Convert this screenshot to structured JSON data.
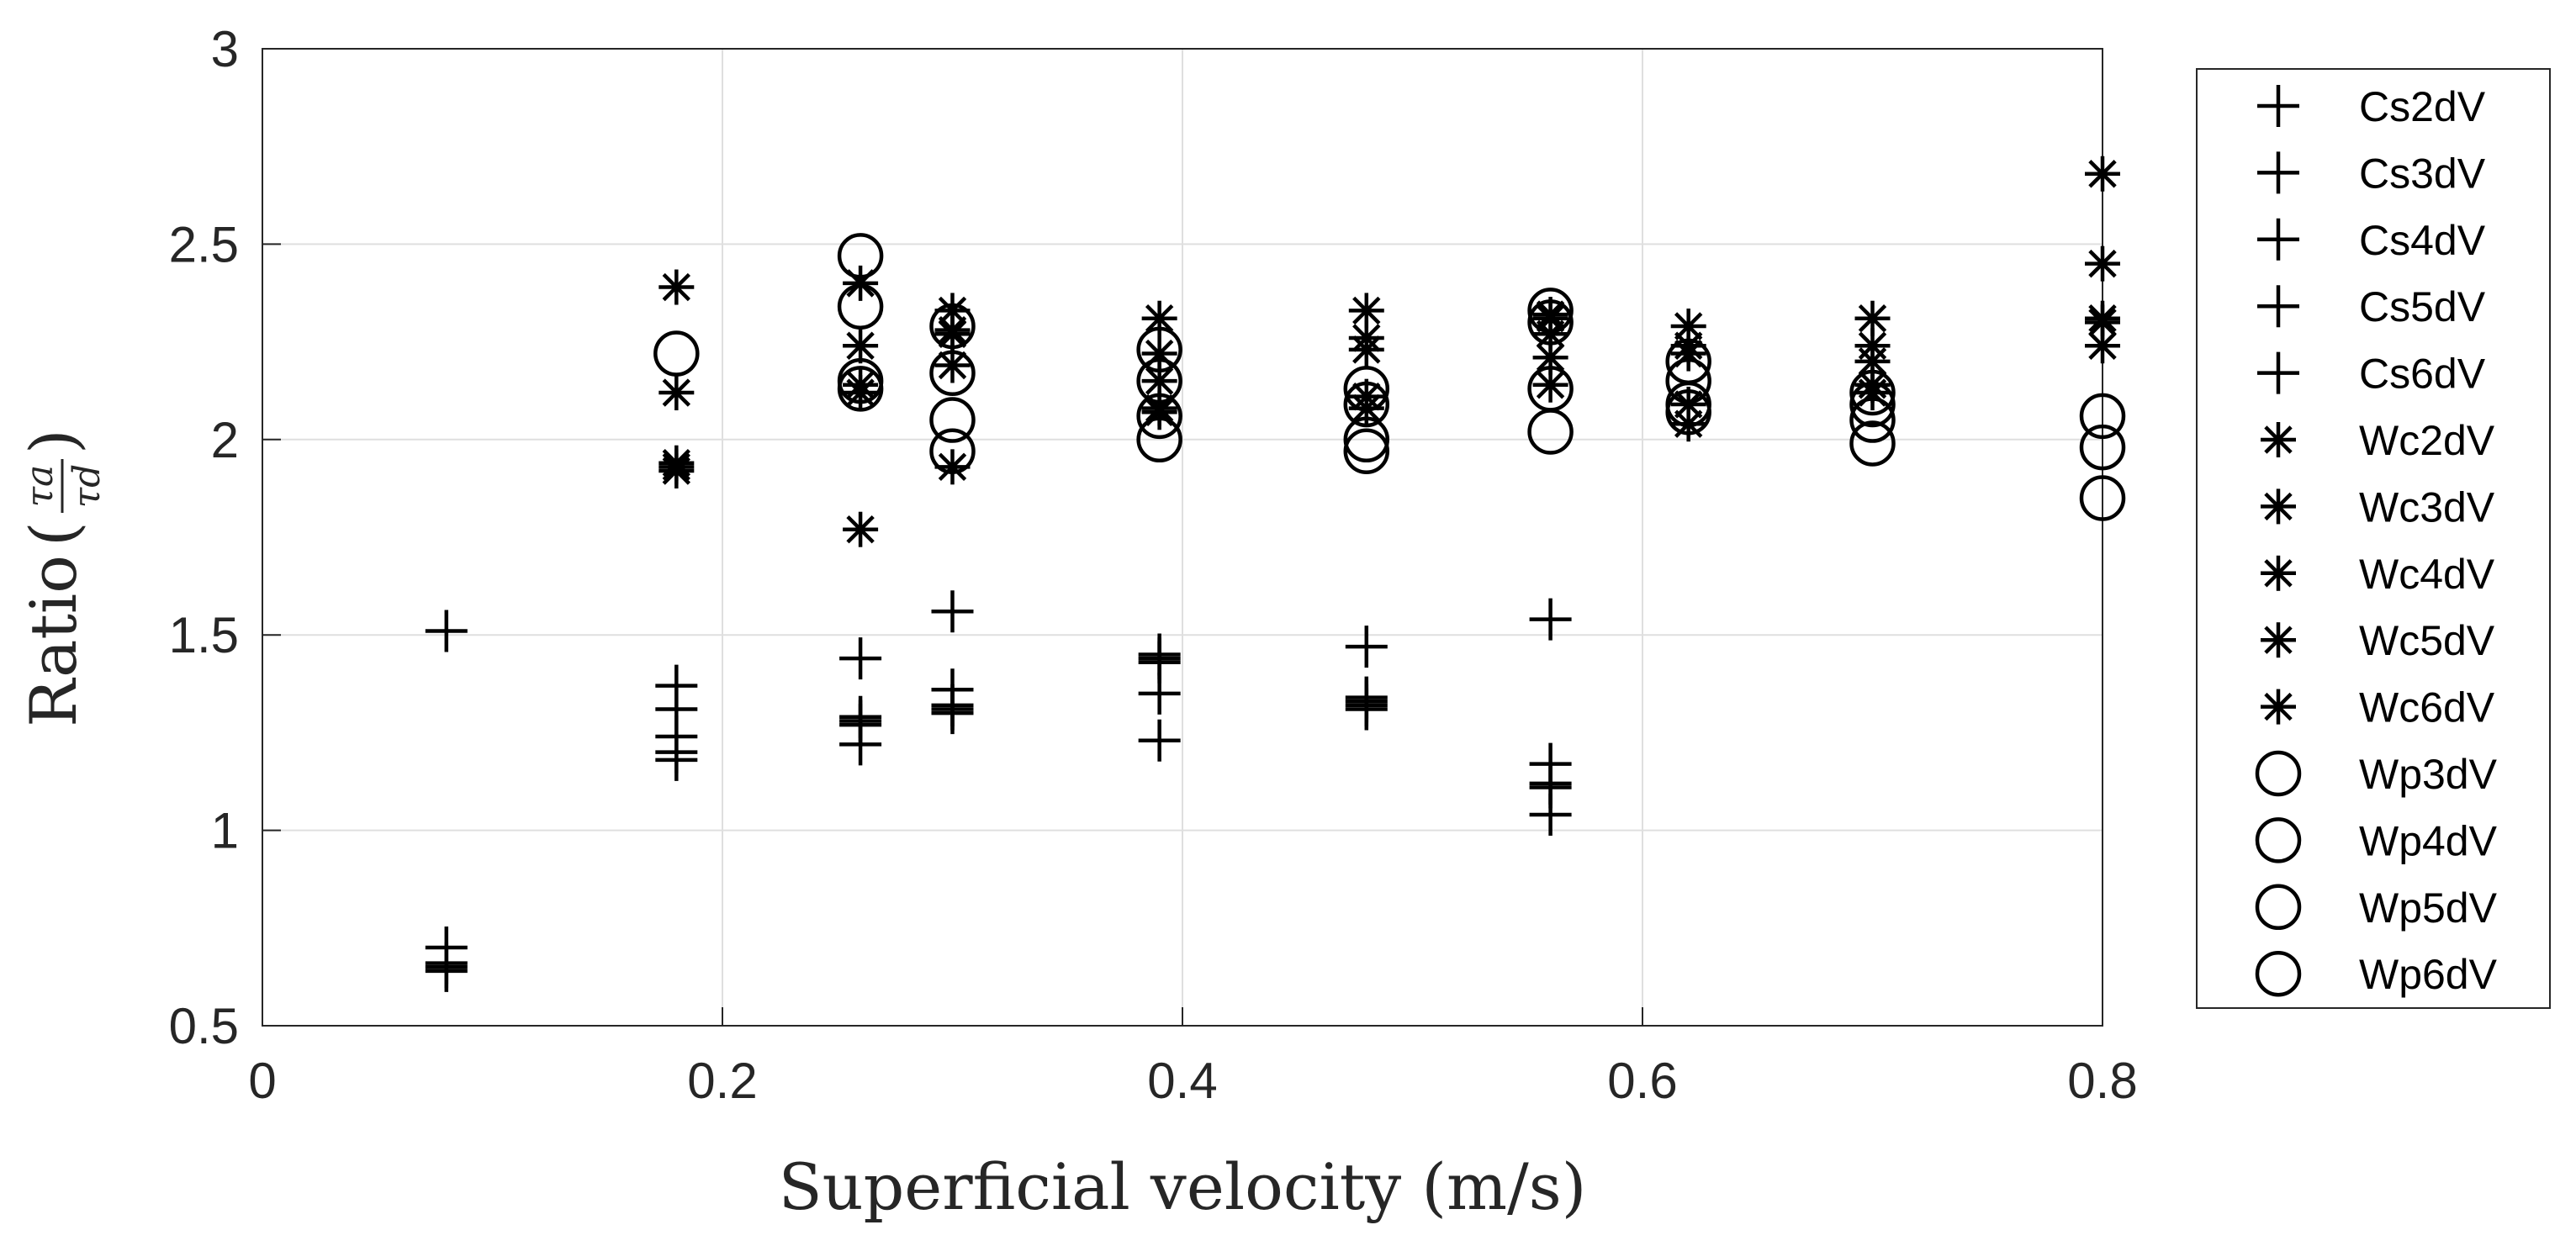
{
  "colors": {
    "marker": "#000000",
    "axis": "#262626",
    "grid": "#dfdfdf",
    "background": "#ffffff"
  },
  "chart_data": {
    "type": "scatter",
    "title": "",
    "xlabel": "Superficial velocity (m/s)",
    "ylabel": "Ratio",
    "ylabel_fraction": {
      "numerator": "τa",
      "denominator": "τd"
    },
    "xlim": [
      0,
      0.8
    ],
    "ylim": [
      0.5,
      3
    ],
    "xticks": [
      0,
      0.2,
      0.4,
      0.6,
      0.8
    ],
    "xtick_labels": [
      "0",
      "0.2",
      "0.4",
      "0.6",
      "0.8"
    ],
    "yticks": [
      0.5,
      1,
      1.5,
      2,
      2.5,
      3
    ],
    "ytick_labels": [
      "0.5",
      "1",
      "1.5",
      "2",
      "2.5",
      "3"
    ],
    "grid": true,
    "legend_position": "outside-right",
    "series": [
      {
        "name": "Cs2dV",
        "marker": "plus",
        "x": [
          0.08,
          0.18,
          0.26,
          0.3,
          0.39,
          0.48,
          0.56
        ],
        "y": [
          1.51,
          1.37,
          1.44,
          1.56,
          1.45,
          1.47,
          1.54
        ]
      },
      {
        "name": "Cs3dV",
        "marker": "plus",
        "x": [
          0.08,
          0.18,
          0.26,
          0.3,
          0.39,
          0.48,
          0.56
        ],
        "y": [
          0.7,
          1.31,
          1.29,
          1.36,
          1.43,
          1.34,
          1.17
        ]
      },
      {
        "name": "Cs4dV",
        "marker": "plus",
        "x": [
          0.08,
          0.18,
          0.26,
          0.3,
          0.39,
          0.48,
          0.56
        ],
        "y": [
          0.66,
          1.24,
          1.28,
          1.32,
          1.35,
          1.33,
          1.12
        ]
      },
      {
        "name": "Cs5dV",
        "marker": "plus",
        "x": [
          0.08,
          0.18,
          0.26,
          0.3,
          0.39,
          0.48,
          0.56
        ],
        "y": [
          0.65,
          1.2,
          1.22,
          1.3,
          1.23,
          1.32,
          1.04
        ]
      },
      {
        "name": "Cs6dV",
        "marker": "plus",
        "x": [
          0.08,
          0.18,
          0.26,
          0.3,
          0.39,
          0.48,
          0.56
        ],
        "y": [
          0.64,
          1.18,
          1.27,
          1.31,
          1.44,
          1.31,
          1.11
        ]
      },
      {
        "name": "Wc2dV",
        "marker": "asterisk",
        "x": [
          0.18,
          0.26,
          0.3,
          0.39,
          0.48,
          0.56,
          0.62,
          0.7,
          0.8
        ],
        "y": [
          2.39,
          2.4,
          2.33,
          2.31,
          2.33,
          2.32,
          2.29,
          2.31,
          2.68
        ]
      },
      {
        "name": "Wc3dV",
        "marker": "asterisk",
        "x": [
          0.18,
          0.26,
          0.3,
          0.39,
          0.48,
          0.56,
          0.62,
          0.7,
          0.8
        ],
        "y": [
          2.12,
          2.24,
          2.27,
          2.22,
          2.26,
          2.27,
          2.24,
          2.24,
          2.45
        ]
      },
      {
        "name": "Wc4dV",
        "marker": "asterisk",
        "x": [
          0.18,
          0.26,
          0.3,
          0.39,
          0.48,
          0.56,
          0.62,
          0.7,
          0.8
        ],
        "y": [
          1.94,
          2.12,
          2.19,
          2.15,
          2.23,
          2.21,
          2.22,
          2.2,
          2.3
        ]
      },
      {
        "name": "Wc5dV",
        "marker": "asterisk",
        "x": [
          0.18,
          0.26,
          0.3,
          0.39,
          0.48,
          0.56,
          0.62,
          0.7,
          0.8
        ],
        "y": [
          1.92,
          1.77,
          1.93,
          2.08,
          2.08,
          2.14,
          2.09,
          2.14,
          2.24
        ]
      },
      {
        "name": "Wc6dV",
        "marker": "asterisk",
        "x": [
          0.18,
          0.26,
          0.3,
          0.39,
          0.48,
          0.56,
          0.62,
          0.7,
          0.8
        ],
        "y": [
          1.93,
          2.14,
          2.28,
          2.07,
          2.11,
          2.31,
          2.04,
          2.12,
          2.31
        ]
      },
      {
        "name": "Wp3dV",
        "marker": "circle",
        "x": [
          0.18,
          0.26,
          0.3,
          0.39,
          0.48,
          0.56,
          0.62,
          0.7,
          0.8
        ],
        "y": [
          2.22,
          2.47,
          2.29,
          2.23,
          2.13,
          2.33,
          2.2,
          2.12,
          2.06
        ]
      },
      {
        "name": "Wp4dV",
        "marker": "circle",
        "x": [
          0.26,
          0.3,
          0.39,
          0.48,
          0.56,
          0.62,
          0.7,
          0.8
        ],
        "y": [
          2.34,
          2.17,
          2.15,
          2.09,
          2.3,
          2.15,
          2.09,
          1.98
        ]
      },
      {
        "name": "Wp5dV",
        "marker": "circle",
        "x": [
          0.26,
          0.3,
          0.39,
          0.48,
          0.56,
          0.62,
          0.7
        ],
        "y": [
          2.15,
          2.05,
          2.06,
          2.0,
          2.13,
          2.09,
          2.05
        ]
      },
      {
        "name": "Wp6dV",
        "marker": "circle",
        "x": [
          0.26,
          0.3,
          0.39,
          0.48,
          0.56,
          0.62,
          0.7,
          0.8
        ],
        "y": [
          2.13,
          1.97,
          2.0,
          1.97,
          2.02,
          2.07,
          1.99,
          1.85
        ]
      }
    ]
  }
}
